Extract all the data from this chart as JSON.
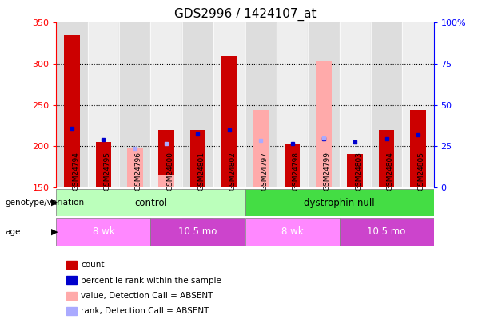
{
  "title": "GDS2996 / 1424107_at",
  "samples": [
    "GSM24794",
    "GSM24795",
    "GSM24796",
    "GSM24800",
    "GSM24801",
    "GSM24802",
    "GSM24797",
    "GSM24798",
    "GSM24799",
    "GSM24803",
    "GSM24804",
    "GSM24805"
  ],
  "count_values": [
    335,
    205,
    153,
    220,
    220,
    310,
    null,
    202,
    null,
    191,
    220,
    244
  ],
  "rank_values": [
    222,
    208,
    null,
    null,
    215,
    220,
    null,
    203,
    209,
    205,
    209,
    214
  ],
  "absent_value_values": [
    null,
    null,
    197,
    165,
    null,
    null,
    244,
    null,
    304,
    null,
    null,
    null
  ],
  "absent_rank_values": [
    null,
    null,
    197,
    203,
    null,
    null,
    207,
    null,
    210,
    null,
    null,
    null
  ],
  "ylim": [
    150,
    350
  ],
  "yticks": [
    150,
    200,
    250,
    300,
    350
  ],
  "color_count": "#cc0000",
  "color_rank": "#0000cc",
  "color_absent_value": "#ffaaaa",
  "color_absent_rank": "#aaaaff",
  "genotype_control_color": "#bbffbb",
  "genotype_dystrophin_color": "#44dd44",
  "age_8wk_color": "#ff88ff",
  "age_105mo_color": "#cc44cc",
  "dotted_lines": [
    200,
    250,
    300
  ],
  "legend_items": [
    {
      "label": "count",
      "color": "#cc0000"
    },
    {
      "label": "percentile rank within the sample",
      "color": "#0000cc"
    },
    {
      "label": "value, Detection Call = ABSENT",
      "color": "#ffaaaa"
    },
    {
      "label": "rank, Detection Call = ABSENT",
      "color": "#aaaaff"
    }
  ]
}
